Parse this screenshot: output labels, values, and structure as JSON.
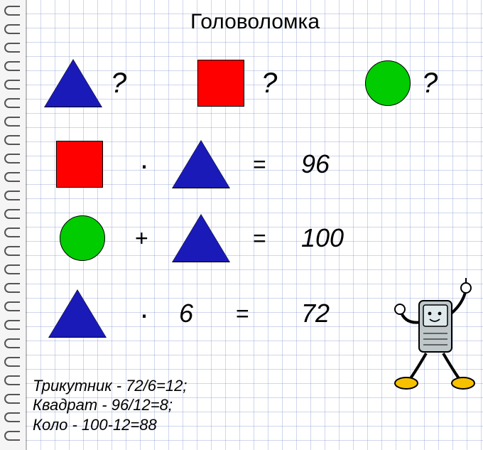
{
  "title": "Головоломка",
  "colors": {
    "triangle": "#1a1ab8",
    "square": "#ff0000",
    "circle": "#00cc00",
    "grid": "#9bb0d8",
    "background": "#ffffff",
    "text": "#000000"
  },
  "shapes": {
    "triangle": {
      "base": 80,
      "height": 66,
      "stroke": "#000",
      "stroke_width": 1
    },
    "square": {
      "size": 66,
      "stroke": "#000",
      "stroke_width": 1
    },
    "circle": {
      "size": 64,
      "stroke": "#000",
      "stroke_width": 1
    }
  },
  "header_row": {
    "q1": "?",
    "q2": "?",
    "q3": "?"
  },
  "equations": [
    {
      "left_shape": "square",
      "op": "·",
      "right": {
        "shape": "triangle"
      },
      "eq": "=",
      "result": "96"
    },
    {
      "left_shape": "circle",
      "op": "+",
      "right": {
        "shape": "triangle"
      },
      "eq": "=",
      "result": "100"
    },
    {
      "left_shape": "triangle",
      "op": "·",
      "right": {
        "text": "6"
      },
      "eq": "=",
      "result": "72"
    }
  ],
  "answers": [
    "Трикутник - 72/6=12;",
    "Квадрат - 96/12=8;",
    "Коло - 100-12=88"
  ]
}
